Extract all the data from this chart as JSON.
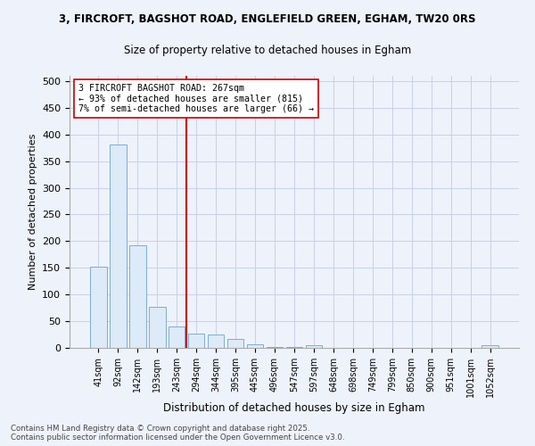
{
  "title_line1": "3, FIRCROFT, BAGSHOT ROAD, ENGLEFIELD GREEN, EGHAM, TW20 0RS",
  "title_line2": "Size of property relative to detached houses in Egham",
  "xlabel": "Distribution of detached houses by size in Egham",
  "ylabel": "Number of detached properties",
  "categories": [
    "41sqm",
    "92sqm",
    "142sqm",
    "193sqm",
    "243sqm",
    "294sqm",
    "344sqm",
    "395sqm",
    "445sqm",
    "496sqm",
    "547sqm",
    "597sqm",
    "648sqm",
    "698sqm",
    "749sqm",
    "799sqm",
    "850sqm",
    "900sqm",
    "951sqm",
    "1001sqm",
    "1052sqm"
  ],
  "values": [
    152,
    382,
    192,
    77,
    40,
    26,
    25,
    16,
    7,
    1,
    1,
    5,
    0,
    0,
    0,
    0,
    0,
    0,
    0,
    0,
    5
  ],
  "bar_color": "#ddeaf7",
  "bar_edge_color": "#7aaed4",
  "vline_x": 4.5,
  "vline_color": "#cc0000",
  "annotation_text": "3 FIRCROFT BAGSHOT ROAD: 267sqm\n← 93% of detached houses are smaller (815)\n7% of semi-detached houses are larger (66) →",
  "annotation_box_color": "#ffffff",
  "annotation_box_edge": "#cc0000",
  "ylim": [
    0,
    510
  ],
  "yticks": [
    0,
    50,
    100,
    150,
    200,
    250,
    300,
    350,
    400,
    450,
    500
  ],
  "footer_line1": "Contains HM Land Registry data © Crown copyright and database right 2025.",
  "footer_line2": "Contains public sector information licensed under the Open Government Licence v3.0.",
  "bg_color": "#eef2fb",
  "grid_color": "#c8d0e8"
}
